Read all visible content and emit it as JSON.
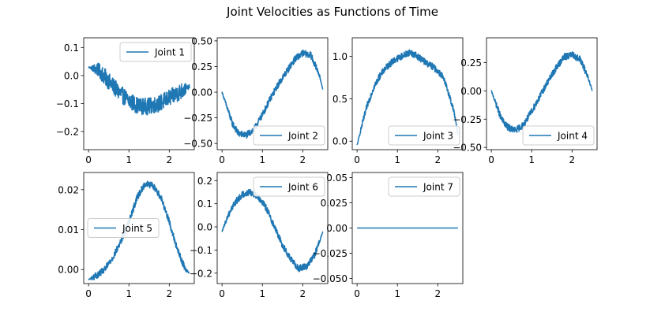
{
  "figure": {
    "title": "Joint Velocities as Functions of Time"
  },
  "colors": {
    "series": "#1f77b4",
    "axes": "#000000",
    "legend_border": "#cccccc",
    "background": "#ffffff"
  },
  "chart_data": [
    {
      "type": "line",
      "panel": 1,
      "legend_label": "Joint 1",
      "legend_position": "upper right",
      "xlim": [
        -0.12,
        2.62
      ],
      "ylim": [
        -0.265,
        0.135
      ],
      "xticks": [
        0,
        1,
        2
      ],
      "yticks": [
        0.1,
        0.0,
        -0.1,
        -0.2
      ],
      "ytick_labels": [
        "0.1",
        "0.0",
        "−0.1",
        "−0.2"
      ],
      "grid": false,
      "noisy": true,
      "x": [
        0,
        0.25,
        0.5,
        0.75,
        1.0,
        1.25,
        1.5,
        1.75,
        2.0,
        2.25,
        2.5
      ],
      "y": [
        0.03,
        0.02,
        -0.02,
        -0.06,
        -0.09,
        -0.11,
        -0.11,
        -0.1,
        -0.08,
        -0.06,
        -0.04
      ]
    },
    {
      "type": "line",
      "panel": 2,
      "legend_label": "Joint 2",
      "legend_position": "lower right",
      "xlim": [
        -0.12,
        2.62
      ],
      "ylim": [
        -0.56,
        0.53
      ],
      "xticks": [
        0,
        1,
        2
      ],
      "yticks": [
        0.5,
        0.25,
        0.0,
        -0.25,
        -0.5
      ],
      "ytick_labels": [
        "0.50",
        "0.25",
        "0.00",
        "−0.25",
        "−0.50"
      ],
      "grid": false,
      "noisy": true,
      "x": [
        0,
        0.1,
        0.25,
        0.4,
        0.6,
        0.8,
        1.0,
        1.2,
        1.4,
        1.6,
        1.8,
        2.0,
        2.2,
        2.4,
        2.5
      ],
      "y": [
        0.0,
        -0.12,
        -0.3,
        -0.4,
        -0.42,
        -0.36,
        -0.22,
        -0.06,
        0.08,
        0.2,
        0.32,
        0.38,
        0.36,
        0.18,
        0.03
      ]
    },
    {
      "type": "line",
      "panel": 3,
      "legend_label": "Joint 3",
      "legend_position": "lower right",
      "xlim": [
        -0.12,
        2.62
      ],
      "ylim": [
        -0.1,
        1.22
      ],
      "xticks": [
        0,
        1,
        2
      ],
      "yticks": [
        1.0,
        0.5,
        0.0
      ],
      "ytick_labels": [
        "1.0",
        "0.5",
        "0.0"
      ],
      "grid": false,
      "noisy": true,
      "x": [
        0,
        0.1,
        0.25,
        0.4,
        0.55,
        0.7,
        0.9,
        1.1,
        1.3,
        1.5,
        1.7,
        1.9,
        2.1,
        2.25,
        2.4,
        2.5
      ],
      "y": [
        -0.05,
        0.15,
        0.42,
        0.62,
        0.76,
        0.86,
        0.95,
        1.0,
        1.05,
        1.0,
        0.93,
        0.87,
        0.78,
        0.6,
        0.35,
        0.08
      ]
    },
    {
      "type": "line",
      "panel": 4,
      "legend_label": "Joint 4",
      "legend_position": "lower right",
      "xlim": [
        -0.12,
        2.62
      ],
      "ylim": [
        -0.52,
        0.47
      ],
      "xticks": [
        0,
        1,
        2
      ],
      "yticks": [
        0.25,
        0.0,
        -0.25,
        -0.5
      ],
      "ytick_labels": [
        "0.25",
        "0.00",
        "−0.25",
        "−0.50"
      ],
      "grid": false,
      "noisy": true,
      "x": [
        0,
        0.1,
        0.25,
        0.4,
        0.6,
        0.8,
        1.0,
        1.2,
        1.4,
        1.6,
        1.8,
        2.0,
        2.2,
        2.4,
        2.5
      ],
      "y": [
        0.0,
        -0.1,
        -0.25,
        -0.32,
        -0.35,
        -0.3,
        -0.18,
        -0.05,
        0.08,
        0.2,
        0.3,
        0.32,
        0.28,
        0.12,
        0.0
      ]
    },
    {
      "type": "line",
      "panel": 5,
      "legend_label": "Joint 5",
      "legend_position": "center left",
      "xlim": [
        -0.12,
        2.62
      ],
      "ylim": [
        -0.0035,
        0.0243
      ],
      "xticks": [
        0,
        1,
        2
      ],
      "yticks": [
        0.02,
        0.01,
        0.0
      ],
      "ytick_labels": [
        "0.02",
        "0.01",
        "0.00"
      ],
      "grid": false,
      "noisy": true,
      "x": [
        0,
        0.2,
        0.4,
        0.6,
        0.8,
        1.0,
        1.2,
        1.4,
        1.6,
        1.8,
        2.0,
        2.2,
        2.4,
        2.5
      ],
      "y": [
        -0.0025,
        -0.0015,
        0.0,
        0.003,
        0.007,
        0.012,
        0.018,
        0.0215,
        0.021,
        0.018,
        0.012,
        0.005,
        0.0,
        -0.0008
      ]
    },
    {
      "type": "line",
      "panel": 6,
      "legend_label": "Joint 6",
      "legend_position": "upper right",
      "xlim": [
        -0.12,
        2.62
      ],
      "ylim": [
        -0.245,
        0.235
      ],
      "xticks": [
        0,
        1,
        2
      ],
      "yticks": [
        0.2,
        0.1,
        0.0,
        -0.1,
        -0.2
      ],
      "ytick_labels": [
        "0.2",
        "0.1",
        "0.0",
        "−0.1",
        "−0.2"
      ],
      "grid": false,
      "noisy": true,
      "x": [
        0,
        0.15,
        0.3,
        0.5,
        0.7,
        0.9,
        1.1,
        1.3,
        1.5,
        1.7,
        1.9,
        2.1,
        2.3,
        2.5
      ],
      "y": [
        -0.02,
        0.05,
        0.1,
        0.14,
        0.15,
        0.13,
        0.08,
        0.0,
        -0.08,
        -0.14,
        -0.18,
        -0.17,
        -0.12,
        -0.02
      ]
    },
    {
      "type": "line",
      "panel": 7,
      "legend_label": "Joint 7",
      "legend_position": "upper right",
      "xlim": [
        -0.12,
        2.62
      ],
      "ylim": [
        -0.055,
        0.055
      ],
      "xticks": [
        0,
        1,
        2
      ],
      "yticks": [
        0.05,
        0.025,
        0.0,
        -0.025,
        -0.05
      ],
      "ytick_labels": [
        "0.05",
        "0.025",
        "0.00",
        "−0.025",
        "−0.050"
      ],
      "grid": false,
      "noisy": false,
      "x": [
        0,
        2.5
      ],
      "y": [
        0,
        0
      ]
    }
  ]
}
